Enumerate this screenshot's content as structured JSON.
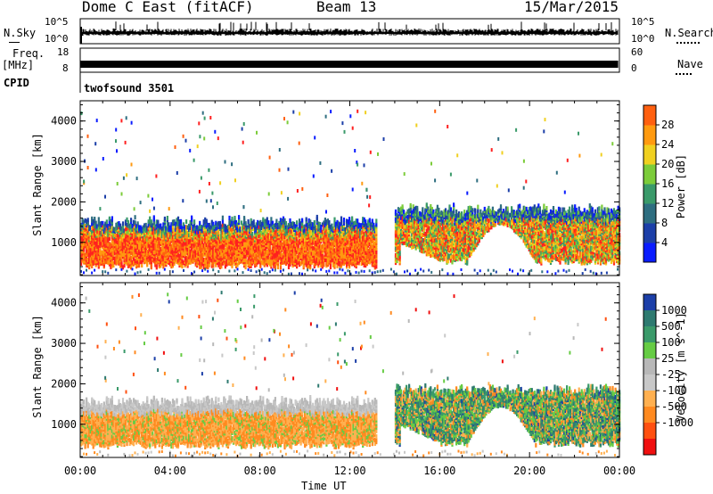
{
  "header": {
    "station": "Dome C East (fitACF)",
    "beam": "Beam 13",
    "date": "15/Mar/2015"
  },
  "top_panels": {
    "nsky_label": "N.Sky",
    "nsky_ticks": [
      "10^5",
      "10^0"
    ],
    "nsearch_label": "N.Search",
    "nsearch_ticks": [
      "10^5",
      "10^0"
    ],
    "freq_label": "Freq.",
    "freq_unit": "[MHz]",
    "freq_ticks": [
      "18",
      "8"
    ],
    "nave_label": "Nave",
    "nave_ticks": [
      "60",
      "0"
    ],
    "cpid_label": "CPID",
    "cpid_value": "twofsound 3501"
  },
  "colors": {
    "power_scale": [
      "#0a1cff",
      "#1c3fa8",
      "#2e6e80",
      "#3a9a6a",
      "#7ccc3a",
      "#f0d020",
      "#ff9a10",
      "#ff6010",
      "#ff2020"
    ],
    "velocity_scale": [
      "#f01010",
      "#ff5010",
      "#ff8a20",
      "#ffb050",
      "#c8c8c8",
      "#b8b8b8",
      "#66cc44",
      "#3a9a6a",
      "#2e7a70",
      "#1c3fa8"
    ]
  },
  "chart_data": [
    {
      "type": "heatmap",
      "title": "Power",
      "ylabel": "Slant Range [km]",
      "xlabel": "",
      "x_ticks": [
        "00:00",
        "04:00",
        "08:00",
        "12:00",
        "16:00",
        "20:00",
        "00:00"
      ],
      "y_ticks": [
        1000,
        2000,
        3000,
        4000
      ],
      "ylim": [
        180,
        4500
      ],
      "colorbar": {
        "label": "Power [dB]",
        "ticks": [
          4,
          8,
          12,
          16,
          20,
          24,
          28
        ]
      },
      "bands": [
        {
          "t_start": 0.0,
          "t_end": 13.2,
          "range_low": 400,
          "range_high": 1450,
          "dominant": "high"
        },
        {
          "t_start": 14.0,
          "t_end": 24.0,
          "range_low": 500,
          "range_high": 1750,
          "dominant": "mixed"
        }
      ]
    },
    {
      "type": "heatmap",
      "title": "Velocity",
      "ylabel": "Slant Range [km]",
      "xlabel": "Time UT",
      "x_ticks": [
        "00:00",
        "04:00",
        "08:00",
        "12:00",
        "16:00",
        "20:00",
        "00:00"
      ],
      "y_ticks": [
        1000,
        2000,
        3000,
        4000
      ],
      "ylim": [
        180,
        4500
      ],
      "colorbar": {
        "label": "Velocity [m s^-1]",
        "ticks": [
          1000,
          500,
          100,
          25,
          -25,
          -100,
          -500,
          -1000
        ]
      },
      "bands": [
        {
          "t_start": 0.0,
          "t_end": 13.2,
          "range_low": 450,
          "range_high": 1500,
          "dominant": "negative"
        },
        {
          "t_start": 14.0,
          "t_end": 24.0,
          "range_low": 500,
          "range_high": 1800,
          "dominant": "mixed"
        }
      ]
    }
  ],
  "axis": {
    "time_label": "Time UT"
  }
}
